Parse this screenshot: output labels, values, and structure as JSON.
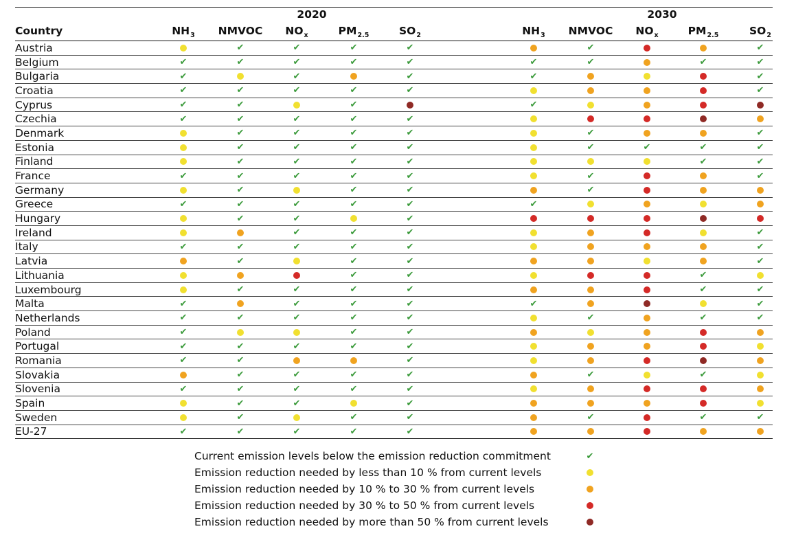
{
  "chart_data": {
    "type": "table",
    "years": [
      "2020",
      "2030"
    ],
    "country_header": "Country",
    "pollutants": [
      {
        "base": "NH",
        "sub": "3"
      },
      {
        "base": "NMVOC",
        "sub": ""
      },
      {
        "base": "NO",
        "sub": "x"
      },
      {
        "base": "PM",
        "sub": "2.5"
      },
      {
        "base": "SO",
        "sub": "2"
      }
    ],
    "status_colors": {
      "ok": "#3a9a3a",
      "lt10": "#f1e030",
      "10to30": "#f0a320",
      "30to50": "#d42a27",
      "gt50": "#8f2a25"
    },
    "rows": [
      {
        "country": "Austria",
        "y2020": [
          "lt10",
          "ok",
          "ok",
          "ok",
          "ok"
        ],
        "y2030": [
          "10to30",
          "ok",
          "30to50",
          "10to30",
          "ok"
        ]
      },
      {
        "country": "Belgium",
        "y2020": [
          "ok",
          "ok",
          "ok",
          "ok",
          "ok"
        ],
        "y2030": [
          "ok",
          "ok",
          "10to30",
          "ok",
          "ok"
        ]
      },
      {
        "country": "Bulgaria",
        "y2020": [
          "ok",
          "lt10",
          "ok",
          "10to30",
          "ok"
        ],
        "y2030": [
          "ok",
          "10to30",
          "lt10",
          "30to50",
          "ok"
        ]
      },
      {
        "country": "Croatia",
        "y2020": [
          "ok",
          "ok",
          "ok",
          "ok",
          "ok"
        ],
        "y2030": [
          "lt10",
          "10to30",
          "10to30",
          "30to50",
          "ok"
        ]
      },
      {
        "country": "Cyprus",
        "y2020": [
          "ok",
          "ok",
          "lt10",
          "ok",
          "gt50"
        ],
        "y2030": [
          "ok",
          "lt10",
          "10to30",
          "30to50",
          "gt50"
        ]
      },
      {
        "country": "Czechia",
        "y2020": [
          "ok",
          "ok",
          "ok",
          "ok",
          "ok"
        ],
        "y2030": [
          "lt10",
          "30to50",
          "30to50",
          "gt50",
          "10to30"
        ]
      },
      {
        "country": "Denmark",
        "y2020": [
          "lt10",
          "ok",
          "ok",
          "ok",
          "ok"
        ],
        "y2030": [
          "lt10",
          "ok",
          "10to30",
          "10to30",
          "ok"
        ]
      },
      {
        "country": "Estonia",
        "y2020": [
          "lt10",
          "ok",
          "ok",
          "ok",
          "ok"
        ],
        "y2030": [
          "lt10",
          "ok",
          "ok",
          "ok",
          "ok"
        ]
      },
      {
        "country": "Finland",
        "y2020": [
          "lt10",
          "ok",
          "ok",
          "ok",
          "ok"
        ],
        "y2030": [
          "lt10",
          "lt10",
          "lt10",
          "ok",
          "ok"
        ]
      },
      {
        "country": "France",
        "y2020": [
          "ok",
          "ok",
          "ok",
          "ok",
          "ok"
        ],
        "y2030": [
          "lt10",
          "ok",
          "30to50",
          "10to30",
          "ok"
        ]
      },
      {
        "country": "Germany",
        "y2020": [
          "lt10",
          "ok",
          "lt10",
          "ok",
          "ok"
        ],
        "y2030": [
          "10to30",
          "ok",
          "30to50",
          "10to30",
          "10to30"
        ]
      },
      {
        "country": "Greece",
        "y2020": [
          "ok",
          "ok",
          "ok",
          "ok",
          "ok"
        ],
        "y2030": [
          "ok",
          "lt10",
          "10to30",
          "lt10",
          "10to30"
        ]
      },
      {
        "country": "Hungary",
        "y2020": [
          "lt10",
          "ok",
          "ok",
          "lt10",
          "ok"
        ],
        "y2030": [
          "30to50",
          "30to50",
          "30to50",
          "gt50",
          "30to50"
        ]
      },
      {
        "country": "Ireland",
        "y2020": [
          "lt10",
          "10to30",
          "ok",
          "ok",
          "ok"
        ],
        "y2030": [
          "lt10",
          "10to30",
          "30to50",
          "lt10",
          "ok"
        ]
      },
      {
        "country": "Italy",
        "y2020": [
          "ok",
          "ok",
          "ok",
          "ok",
          "ok"
        ],
        "y2030": [
          "lt10",
          "10to30",
          "10to30",
          "10to30",
          "ok"
        ]
      },
      {
        "country": "Latvia",
        "y2020": [
          "10to30",
          "ok",
          "lt10",
          "ok",
          "ok"
        ],
        "y2030": [
          "10to30",
          "10to30",
          "lt10",
          "10to30",
          "ok"
        ]
      },
      {
        "country": "Lithuania",
        "y2020": [
          "lt10",
          "10to30",
          "30to50",
          "ok",
          "ok"
        ],
        "y2030": [
          "lt10",
          "30to50",
          "30to50",
          "ok",
          "lt10"
        ]
      },
      {
        "country": "Luxembourg",
        "y2020": [
          "lt10",
          "ok",
          "ok",
          "ok",
          "ok"
        ],
        "y2030": [
          "10to30",
          "10to30",
          "30to50",
          "ok",
          "ok"
        ]
      },
      {
        "country": "Malta",
        "y2020": [
          "ok",
          "10to30",
          "ok",
          "ok",
          "ok"
        ],
        "y2030": [
          "ok",
          "10to30",
          "gt50",
          "lt10",
          "ok"
        ]
      },
      {
        "country": "Netherlands",
        "y2020": [
          "ok",
          "ok",
          "ok",
          "ok",
          "ok"
        ],
        "y2030": [
          "lt10",
          "ok",
          "10to30",
          "ok",
          "ok"
        ]
      },
      {
        "country": "Poland",
        "y2020": [
          "ok",
          "lt10",
          "lt10",
          "ok",
          "ok"
        ],
        "y2030": [
          "10to30",
          "lt10",
          "10to30",
          "30to50",
          "10to30"
        ]
      },
      {
        "country": "Portugal",
        "y2020": [
          "ok",
          "ok",
          "ok",
          "ok",
          "ok"
        ],
        "y2030": [
          "lt10",
          "10to30",
          "10to30",
          "30to50",
          "lt10"
        ]
      },
      {
        "country": "Romania",
        "y2020": [
          "ok",
          "ok",
          "10to30",
          "10to30",
          "ok"
        ],
        "y2030": [
          "lt10",
          "10to30",
          "30to50",
          "gt50",
          "10to30"
        ]
      },
      {
        "country": "Slovakia",
        "y2020": [
          "10to30",
          "ok",
          "ok",
          "ok",
          "ok"
        ],
        "y2030": [
          "10to30",
          "ok",
          "lt10",
          "ok",
          "lt10"
        ]
      },
      {
        "country": "Slovenia",
        "y2020": [
          "ok",
          "ok",
          "ok",
          "ok",
          "ok"
        ],
        "y2030": [
          "lt10",
          "10to30",
          "30to50",
          "30to50",
          "10to30"
        ]
      },
      {
        "country": "Spain",
        "y2020": [
          "lt10",
          "ok",
          "ok",
          "lt10",
          "ok"
        ],
        "y2030": [
          "10to30",
          "10to30",
          "10to30",
          "30to50",
          "lt10"
        ]
      },
      {
        "country": "Sweden",
        "y2020": [
          "lt10",
          "ok",
          "lt10",
          "ok",
          "ok"
        ],
        "y2030": [
          "10to30",
          "ok",
          "30to50",
          "ok",
          "ok"
        ]
      },
      {
        "country": "EU-27",
        "y2020": [
          "ok",
          "ok",
          "ok",
          "ok",
          "ok"
        ],
        "y2030": [
          "10to30",
          "10to30",
          "30to50",
          "10to30",
          "10to30"
        ]
      }
    ],
    "legend": [
      {
        "status": "ok",
        "label": "Current emission levels below the emission reduction commitment"
      },
      {
        "status": "lt10",
        "label": "Emission reduction needed by less than 10 % from current levels"
      },
      {
        "status": "10to30",
        "label": "Emission reduction needed by 10 % to 30 % from current levels"
      },
      {
        "status": "30to50",
        "label": "Emission reduction needed by 30 % to 50 % from current levels"
      },
      {
        "status": "gt50",
        "label": "Emission reduction needed by more than 50 % from current levels"
      }
    ]
  }
}
